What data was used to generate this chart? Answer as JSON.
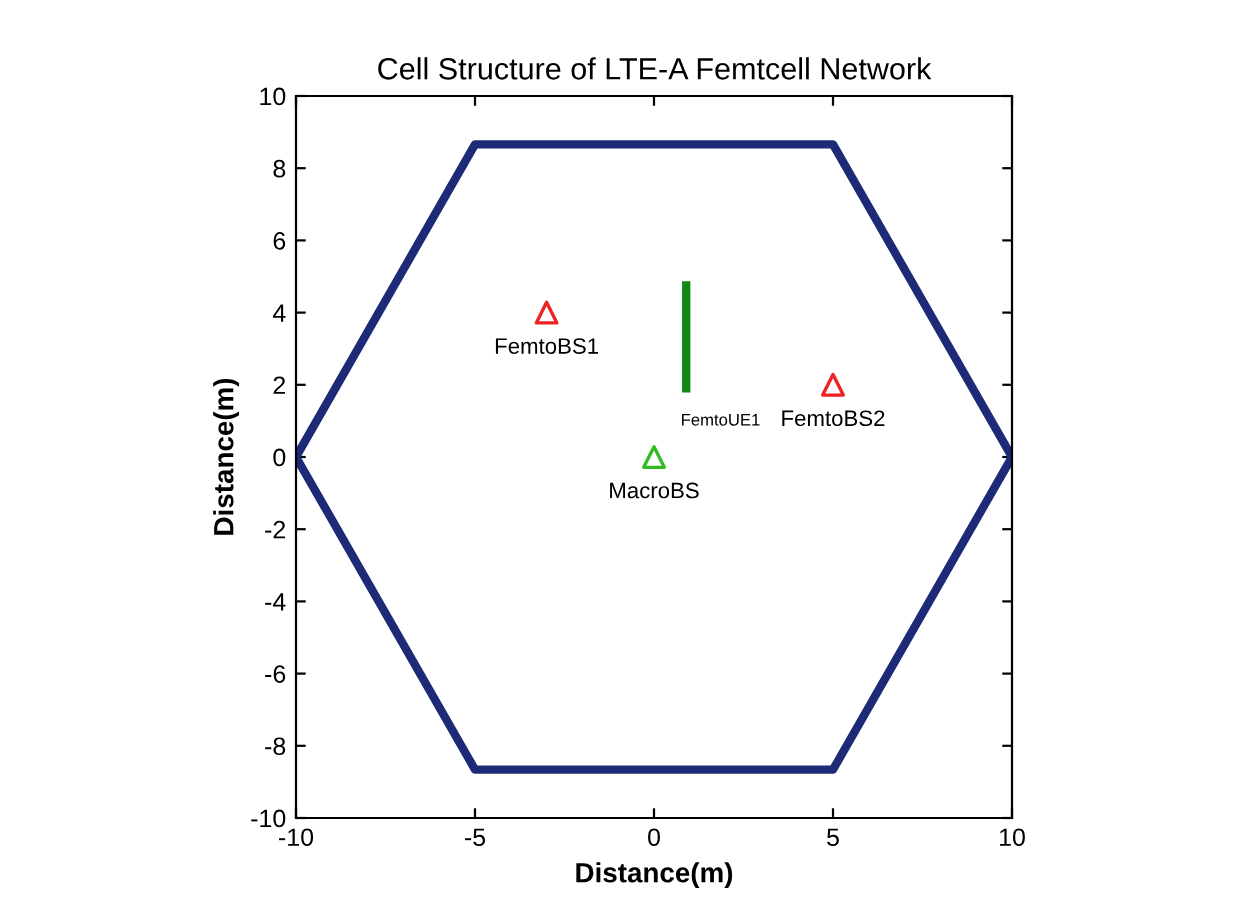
{
  "chart_data": {
    "type": "line",
    "title": "Cell Structure of LTE-A Femtcell Network",
    "xlabel": "Distance(m)",
    "ylabel": "Distance(m)",
    "xlim": [
      -10,
      10
    ],
    "ylim": [
      -10,
      10
    ],
    "xticks": [
      -10,
      -5,
      0,
      5,
      10
    ],
    "yticks": [
      -10,
      -8,
      -6,
      -4,
      -2,
      0,
      2,
      4,
      6,
      8,
      10
    ],
    "grid": false,
    "legend": false,
    "series": [
      {
        "color": "#1c2a78",
        "x": [
          -10,
          -5,
          5,
          10
        ],
        "values": [
          0,
          8.66,
          8.66,
          0
        ]
      },
      {
        "color": "#1c2a78",
        "x": [
          -10,
          -5,
          5,
          10
        ],
        "values": [
          0,
          -8.66,
          -8.66,
          0
        ]
      },
      {
        "color": "#118811",
        "x": [
          0.9,
          0.9
        ],
        "values": [
          1.9,
          4.75
        ]
      },
      {
        "type": "scatter",
        "color": "#ee2222",
        "x": [
          -3,
          5
        ],
        "values": [
          4,
          2
        ],
        "marker": "triangle"
      },
      {
        "type": "scatter",
        "color": "#33bb22",
        "x": [
          0
        ],
        "values": [
          0
        ],
        "marker": "triangle"
      }
    ],
    "annotations": [
      {
        "text": "FemtoBS1",
        "x": -3,
        "y": 4
      },
      {
        "text": "FemtoUE1",
        "x": 0.9,
        "y": 1.9
      },
      {
        "text": "FemtoBS2",
        "x": 5,
        "y": 2
      },
      {
        "text": "MacroBS",
        "x": 0,
        "y": 0
      }
    ]
  }
}
